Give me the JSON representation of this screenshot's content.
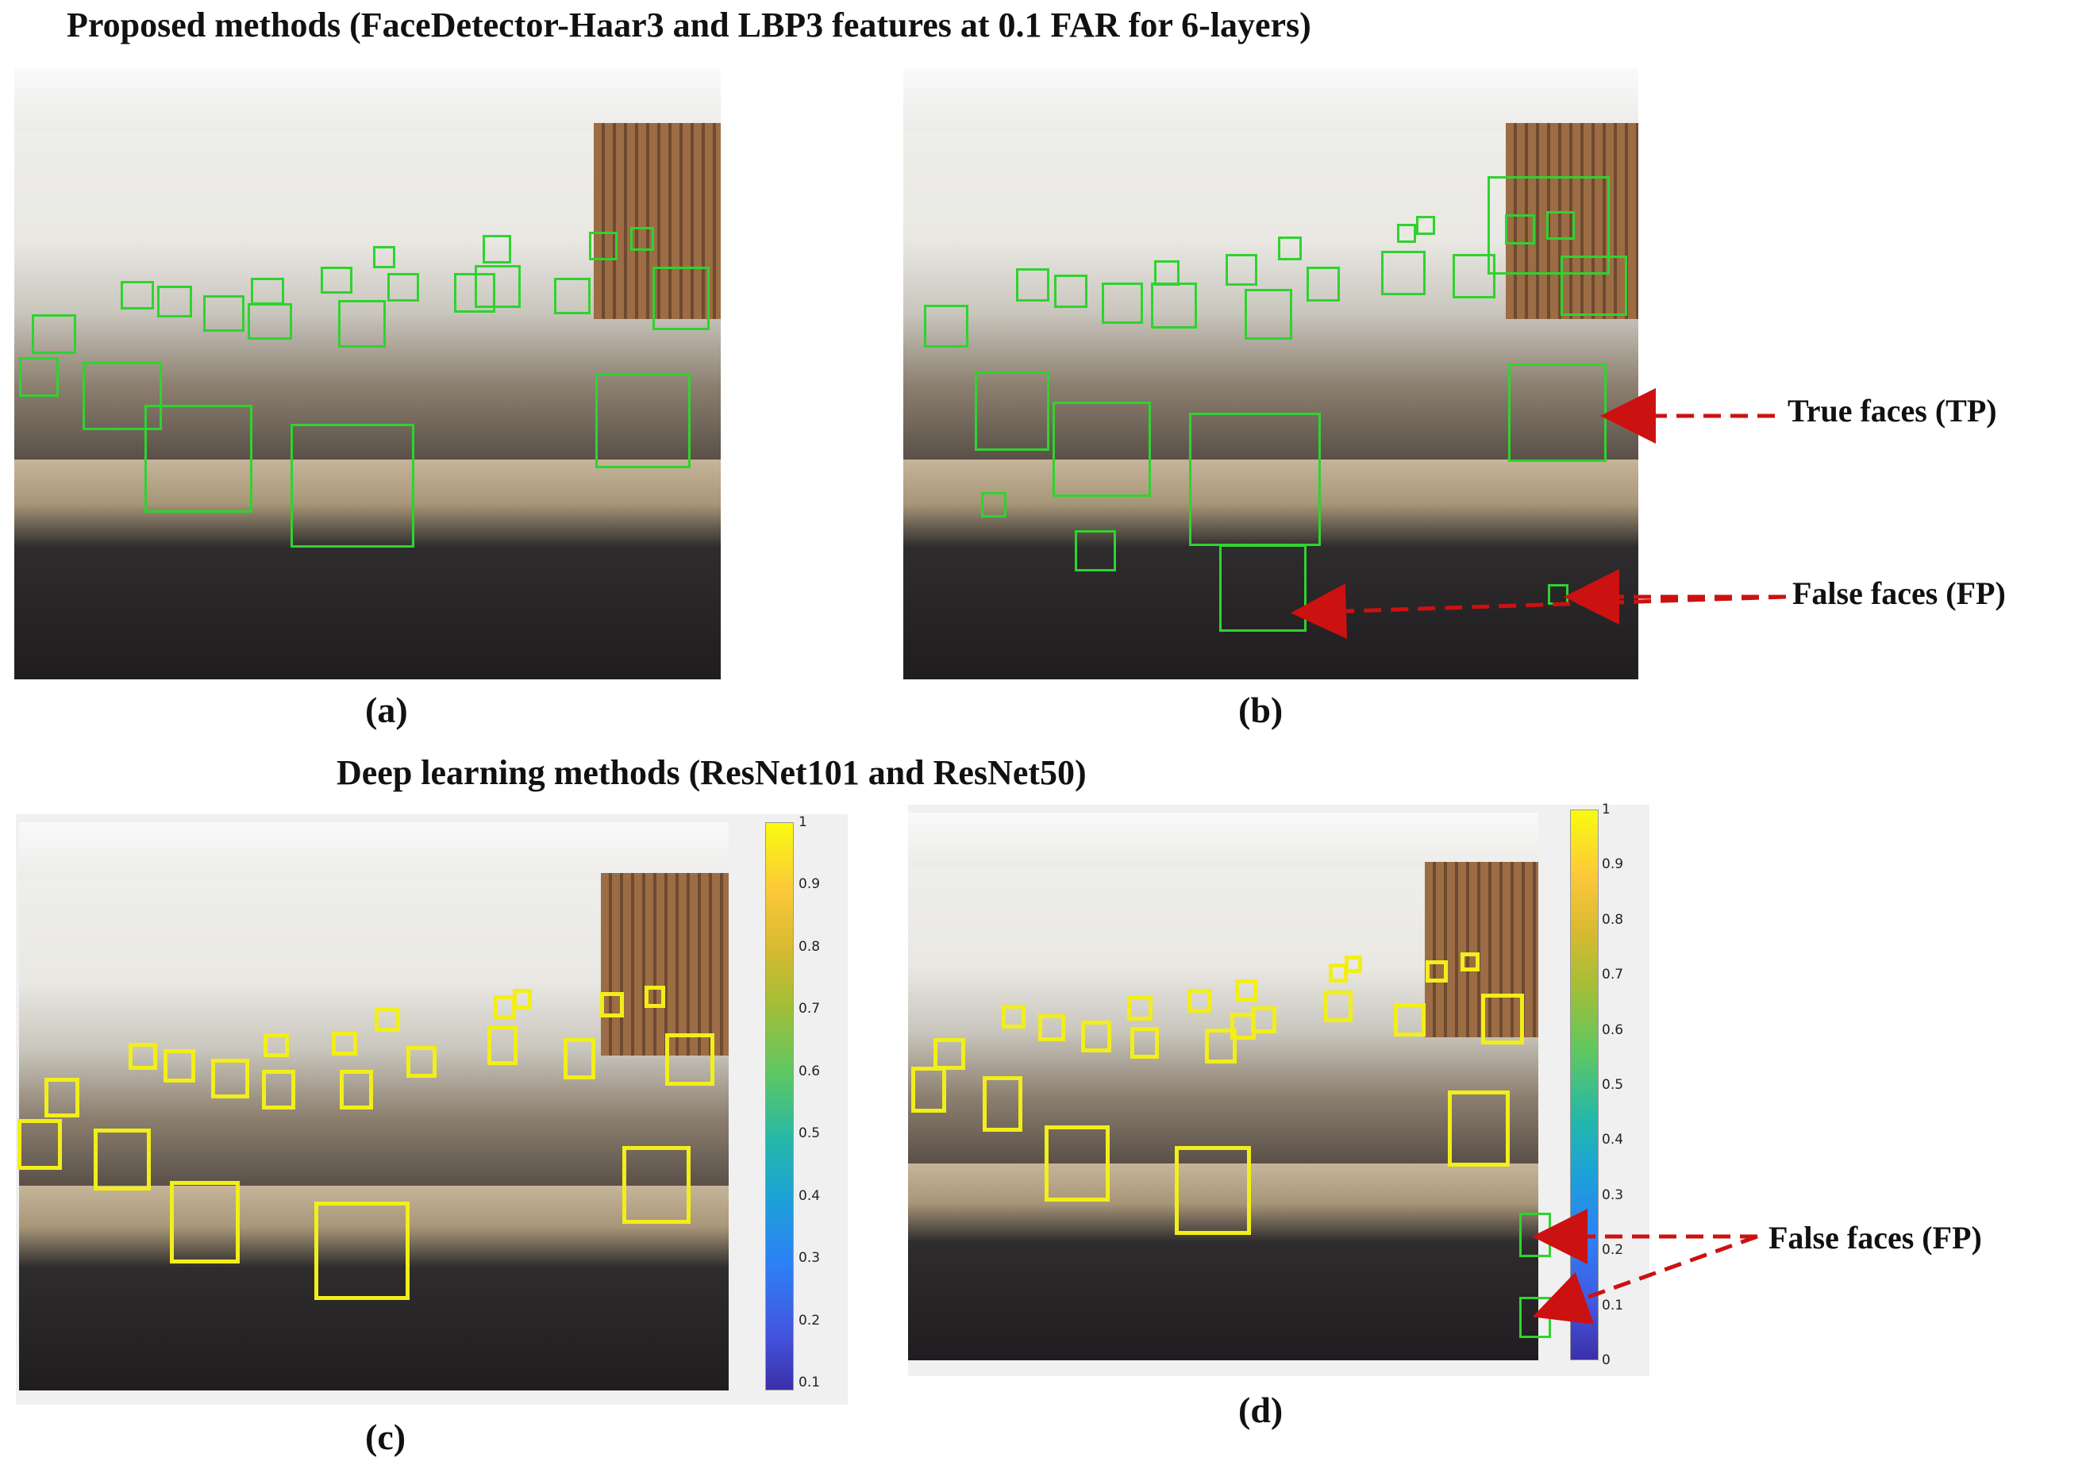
{
  "figure": {
    "title_top": "Proposed methods (FaceDetector-Haar3 and LBP3 features at 0.1 FAR for 6-layers)",
    "title_bottom": "Deep learning methods (ResNet101 and ResNet50)",
    "panels": [
      {
        "label": "(a)",
        "image": "classroom-photo"
      },
      {
        "label": "(b)",
        "image": "classroom-photo"
      },
      {
        "label": "(c)",
        "image": "classroom-photo"
      },
      {
        "label": "(d)",
        "image": "classroom-photo"
      }
    ],
    "annotations": {
      "true_faces": "True faces (TP)",
      "false_faces_top": "False faces (FP)",
      "false_faces_bottom": "False faces (FP)"
    },
    "colorbar_c_ticks": [
      "1",
      "0.9",
      "0.8",
      "0.7",
      "0.6",
      "0.5",
      "0.4",
      "0.3",
      "0.2",
      "0.1"
    ],
    "colorbar_d_ticks": [
      "1",
      "0.9",
      "0.8",
      "0.7",
      "0.6",
      "0.5",
      "0.4",
      "0.3",
      "0.2",
      "0.1",
      "0"
    ],
    "colors": {
      "detection_box_haar": "#2fd32f",
      "detection_box_resnet": "#f2ee1a",
      "arrow": "#cc1111"
    }
  }
}
